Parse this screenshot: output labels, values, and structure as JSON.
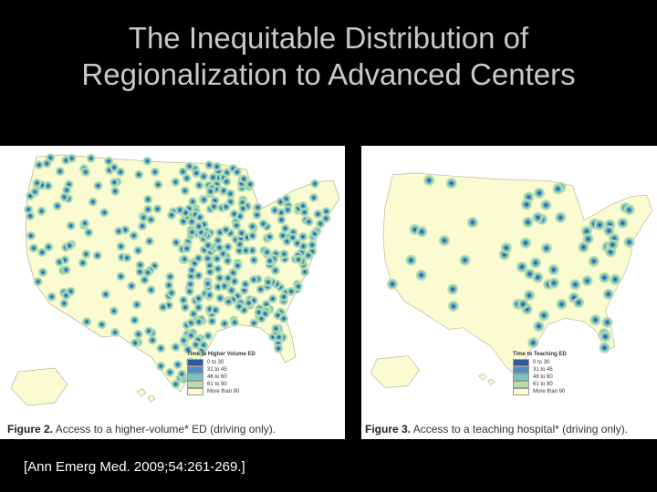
{
  "slide": {
    "title_line1": "The Inequitable Distribution of",
    "title_line2": "Regionalization to Advanced Centers",
    "citation": "[Ann Emerg Med. 2009;54:261-269.]"
  },
  "colors": {
    "background": "#000000",
    "title": "#c9c9c9",
    "band_0_30": "#2c5a9c",
    "band_31_45": "#4f8fbf",
    "band_46_60": "#78c4c0",
    "band_61_90": "#b9deab",
    "band_over_90": "#fbfbd2"
  },
  "figure2": {
    "label": "Figure 2.",
    "caption_text": "Access to a higher-volume* ED (driving only).",
    "legend_title": "Time to Higher Volume ED",
    "legend": [
      "0 to 30",
      "31 to 45",
      "46 to 60",
      "61 to 90",
      "More than 90"
    ],
    "marker_count": 420
  },
  "figure3": {
    "label": "Figure 3.",
    "caption_text": "Access to a teaching hospital* (driving only).",
    "legend_title": "Time to Teaching ED",
    "legend": [
      "0 to 30",
      "31 to 45",
      "46 to 60",
      "61 to 90",
      "More than 90"
    ],
    "marker_count": 70
  }
}
